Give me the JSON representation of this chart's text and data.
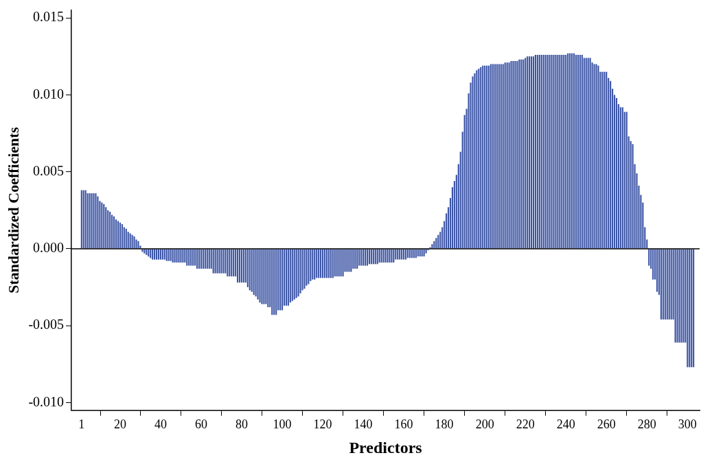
{
  "chart_data": {
    "type": "bar",
    "xlabel": "Predictors",
    "ylabel": "Standardized Coefficients",
    "color": "#3a53a4",
    "x": [
      1,
      2,
      3,
      4,
      5,
      6,
      7,
      8,
      9,
      10,
      11,
      12,
      13,
      14,
      15,
      16,
      17,
      18,
      19,
      20,
      21,
      22,
      23,
      24,
      25,
      26,
      27,
      28,
      29,
      30,
      31,
      32,
      33,
      34,
      35,
      36,
      37,
      38,
      39,
      40,
      41,
      42,
      43,
      44,
      45,
      46,
      47,
      48,
      49,
      50,
      51,
      52,
      53,
      54,
      55,
      56,
      57,
      58,
      59,
      60,
      61,
      62,
      63,
      64,
      65,
      66,
      67,
      68,
      69,
      70,
      71,
      72,
      73,
      74,
      75,
      76,
      77,
      78,
      79,
      80,
      81,
      82,
      83,
      84,
      85,
      86,
      87,
      88,
      89,
      90,
      91,
      92,
      93,
      94,
      95,
      96,
      97,
      98,
      99,
      100,
      101,
      102,
      103,
      104,
      105,
      106,
      107,
      108,
      109,
      110,
      111,
      112,
      113,
      114,
      115,
      116,
      117,
      118,
      119,
      120,
      121,
      122,
      123,
      124,
      125,
      126,
      127,
      128,
      129,
      130,
      131,
      132,
      133,
      134,
      135,
      136,
      137,
      138,
      139,
      140,
      141,
      142,
      143,
      144,
      145,
      146,
      147,
      148,
      149,
      150,
      151,
      152,
      153,
      154,
      155,
      156,
      157,
      158,
      159,
      160,
      161,
      162,
      163,
      164,
      165,
      166,
      167,
      168,
      169,
      170,
      171,
      172,
      173,
      174,
      175,
      176,
      177,
      178,
      179,
      180,
      181,
      182,
      183,
      184,
      185,
      186,
      187,
      188,
      189,
      190,
      191,
      192,
      193,
      194,
      195,
      196,
      197,
      198,
      199,
      200,
      201,
      202,
      203,
      204,
      205,
      206,
      207,
      208,
      209,
      210,
      211,
      212,
      213,
      214,
      215,
      216,
      217,
      218,
      219,
      220,
      221,
      222,
      223,
      224,
      225,
      226,
      227,
      228,
      229,
      230,
      231,
      232,
      233,
      234,
      235,
      236,
      237,
      238,
      239,
      240,
      241,
      242,
      243,
      244,
      245,
      246,
      247,
      248,
      249,
      250,
      251,
      252,
      253,
      254,
      255,
      256,
      257,
      258,
      259,
      260,
      261,
      262,
      263,
      264,
      265,
      266,
      267,
      268,
      269,
      270,
      271,
      272,
      273,
      274,
      275,
      276,
      277,
      278,
      279,
      280,
      281,
      282,
      283,
      284,
      285,
      286,
      287,
      288,
      289,
      290,
      291,
      292,
      293,
      294,
      295,
      296,
      297,
      298,
      299,
      300,
      301,
      302,
      303
    ],
    "values": [
      0.0038,
      0.0038,
      0.0038,
      0.0036,
      0.0036,
      0.0036,
      0.0036,
      0.0036,
      0.0034,
      0.0031,
      0.003,
      0.0029,
      0.0027,
      0.0025,
      0.0024,
      0.0022,
      0.0021,
      0.0019,
      0.0018,
      0.0017,
      0.0016,
      0.0014,
      0.0013,
      0.0011,
      0.001,
      0.0009,
      0.0008,
      0.0006,
      0.0005,
      0.0002,
      -0.0002,
      -0.0003,
      -0.0004,
      -0.0005,
      -0.0006,
      -0.0007,
      -0.0007,
      -0.0007,
      -0.0007,
      -0.0007,
      -0.0007,
      -0.0007,
      -0.0008,
      -0.0008,
      -0.0008,
      -0.0009,
      -0.0009,
      -0.0009,
      -0.0009,
      -0.0009,
      -0.0009,
      -0.0009,
      -0.0011,
      -0.0011,
      -0.0011,
      -0.0011,
      -0.0011,
      -0.0013,
      -0.0013,
      -0.0013,
      -0.0013,
      -0.0013,
      -0.0013,
      -0.0013,
      -0.0013,
      -0.0016,
      -0.0016,
      -0.0016,
      -0.0016,
      -0.0016,
      -0.0016,
      -0.0016,
      -0.0018,
      -0.0018,
      -0.0018,
      -0.0018,
      -0.0018,
      -0.0022,
      -0.0022,
      -0.0022,
      -0.0022,
      -0.0022,
      -0.0025,
      -0.0027,
      -0.0028,
      -0.003,
      -0.0031,
      -0.0033,
      -0.0035,
      -0.0036,
      -0.0036,
      -0.0036,
      -0.0038,
      -0.0038,
      -0.0043,
      -0.0043,
      -0.0043,
      -0.004,
      -0.004,
      -0.004,
      -0.0037,
      -0.0037,
      -0.0037,
      -0.0035,
      -0.0034,
      -0.0033,
      -0.0032,
      -0.0031,
      -0.0029,
      -0.0027,
      -0.0026,
      -0.0024,
      -0.0023,
      -0.0021,
      -0.002,
      -0.002,
      -0.0019,
      -0.0019,
      -0.0019,
      -0.0019,
      -0.0019,
      -0.0019,
      -0.0019,
      -0.0019,
      -0.0019,
      -0.0018,
      -0.0018,
      -0.0018,
      -0.0018,
      -0.0018,
      -0.0015,
      -0.0015,
      -0.0015,
      -0.0015,
      -0.0013,
      -0.0013,
      -0.0013,
      -0.0011,
      -0.0011,
      -0.0011,
      -0.0011,
      -0.0011,
      -0.001,
      -0.001,
      -0.001,
      -0.001,
      -0.001,
      -0.0009,
      -0.0009,
      -0.0009,
      -0.0009,
      -0.0009,
      -0.0009,
      -0.0009,
      -0.0009,
      -0.0007,
      -0.0007,
      -0.0007,
      -0.0007,
      -0.0007,
      -0.0007,
      -0.0006,
      -0.0006,
      -0.0006,
      -0.0006,
      -0.0006,
      -0.0005,
      -0.0005,
      -0.0005,
      -0.0005,
      -0.0003,
      -0.0001,
      0.0001,
      0.0003,
      0.0005,
      0.0007,
      0.0009,
      0.0011,
      0.0014,
      0.0018,
      0.0023,
      0.0027,
      0.0033,
      0.004,
      0.0044,
      0.0048,
      0.0055,
      0.0063,
      0.0076,
      0.0087,
      0.0091,
      0.0101,
      0.0108,
      0.0112,
      0.0114,
      0.0116,
      0.0117,
      0.0118,
      0.0119,
      0.0119,
      0.0119,
      0.0119,
      0.012,
      0.012,
      0.012,
      0.012,
      0.012,
      0.012,
      0.012,
      0.0121,
      0.0121,
      0.0121,
      0.0122,
      0.0122,
      0.0122,
      0.0122,
      0.0123,
      0.0123,
      0.0123,
      0.0124,
      0.0125,
      0.0125,
      0.0125,
      0.0125,
      0.0126,
      0.0126,
      0.0126,
      0.0126,
      0.0126,
      0.0126,
      0.0126,
      0.0126,
      0.0126,
      0.0126,
      0.0126,
      0.0126,
      0.0126,
      0.0126,
      0.0126,
      0.0126,
      0.0127,
      0.0127,
      0.0127,
      0.0127,
      0.0126,
      0.0126,
      0.0126,
      0.0126,
      0.0124,
      0.0124,
      0.0124,
      0.0124,
      0.0121,
      0.012,
      0.012,
      0.0119,
      0.0115,
      0.0115,
      0.0115,
      0.0115,
      0.0111,
      0.0109,
      0.0104,
      0.01,
      0.0098,
      0.0094,
      0.0092,
      0.0092,
      0.0089,
      0.0089,
      0.0073,
      0.007,
      0.0068,
      0.0055,
      0.0049,
      0.0041,
      0.0035,
      0.003,
      0.0014,
      0.0006,
      -0.0011,
      -0.0013,
      -0.002,
      -0.002,
      -0.0028,
      -0.003,
      -0.0046,
      -0.0046,
      -0.0046,
      -0.0046,
      -0.0046,
      -0.0046,
      -0.0046,
      -0.0061,
      -0.0061,
      -0.0061,
      -0.0061,
      -0.0061,
      -0.0061,
      -0.0077,
      -0.0077,
      -0.0077,
      -0.0077
    ],
    "xlim": [
      -4,
      306
    ],
    "xticks": [
      1,
      20,
      40,
      60,
      80,
      100,
      120,
      140,
      160,
      180,
      200,
      220,
      240,
      260,
      280,
      300
    ],
    "ylim": [
      -0.0105,
      0.0155
    ],
    "yticks": [
      {
        "value": -0.01,
        "label": "-0.010"
      },
      {
        "value": -0.005,
        "label": "-0.005"
      },
      {
        "value": 0,
        "label": "0.000"
      },
      {
        "value": 0.005,
        "label": "0.005"
      },
      {
        "value": 0.01,
        "label": "0.010"
      },
      {
        "value": 0.015,
        "label": "0.015"
      }
    ],
    "ref_lines": [
      {
        "axis": "y",
        "value": 0,
        "color": "#000000"
      }
    ],
    "grid": false,
    "legend": false
  }
}
